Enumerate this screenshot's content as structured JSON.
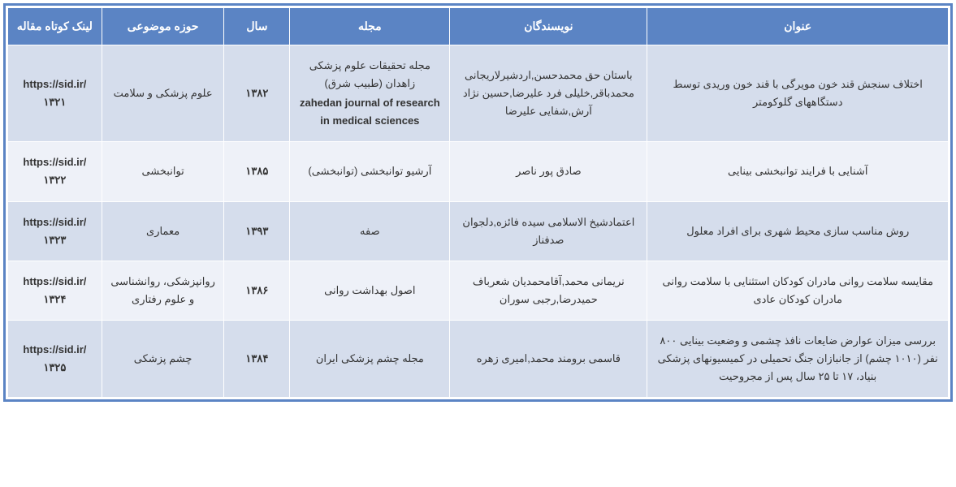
{
  "colors": {
    "header_bg": "#5b84c4",
    "header_text": "#ffffff",
    "row_odd_bg": "#d5ddec",
    "row_even_bg": "#eef1f8",
    "border": "#5b84c4",
    "cell_border": "#ffffff",
    "text": "#333333"
  },
  "typography": {
    "header_fontsize": 14,
    "cell_fontsize": 13,
    "font_family": "Tahoma"
  },
  "columns": [
    {
      "key": "title",
      "label": "عنوان",
      "width_pct": 32
    },
    {
      "key": "authors",
      "label": "نویسندگان",
      "width_pct": 21
    },
    {
      "key": "journal",
      "label": "مجله",
      "width_pct": 17
    },
    {
      "key": "year",
      "label": "سال",
      "width_pct": 7
    },
    {
      "key": "domain",
      "label": "حوزه موضوعی",
      "width_pct": 13
    },
    {
      "key": "link",
      "label": "لینک کوتاه مقاله",
      "width_pct": 13
    }
  ],
  "rows": [
    {
      "title": "اختلاف سنجش قند خون مویرگی با قند خون وریدی توسط دستگاههای گلوکومتر",
      "authors": "باستان حق محمدحسن,اردشیرلاریجانی محمدباقر,خلیلی فرد علیرضا,حسین نژاد آرش,شفایی علیرضا",
      "journal_fa": "مجله تحقیقات علوم پزشکی زاهدان (طبیب شرق)",
      "journal_en": "zahedan journal of research in medical sciences",
      "year": "۱۳۸۲",
      "domain": "علوم پزشکی و سلامت",
      "link": "https://sid.ir/۱۳۲۱"
    },
    {
      "title": "آشنایی با فرایند توانبخشی بینایی",
      "authors": "صادق پور ناصر",
      "journal_fa": "آرشیو توانبخشی (توانبخشی)",
      "journal_en": "",
      "year": "۱۳۸۵",
      "domain": "توانبخشی",
      "link": "https://sid.ir/۱۳۲۲"
    },
    {
      "title": "روش مناسب سازی محیط شهری برای افراد معلول",
      "authors": "اعتمادشیخ الاسلامی سیده فائزه,دلجوان صدفناز",
      "journal_fa": "صفه",
      "journal_en": "",
      "year": "۱۳۹۳",
      "domain": "معماری",
      "link": "https://sid.ir/۱۳۲۳"
    },
    {
      "title": "مقایسه سلامت روانی مادران کودکان استثنایی با سلامت روانی مادران کودکان عادی",
      "authors": "نریمانی محمد,آقامحمدیان شعرباف حمیدرضا,رجبی سوران",
      "journal_fa": "اصول بهداشت روانی",
      "journal_en": "",
      "year": "۱۳۸۶",
      "domain": "روانپزشکی، روانشناسی و علوم رفتاری",
      "link": "https://sid.ir/۱۳۲۴"
    },
    {
      "title": "بررسی میزان عوارض ضایعات نافذ چشمی و وضعیت بینایی ۸۰۰ نفر (۱۰۱۰ چشم) از جانبازان جنگ تحمیلی در کمیسیونهای پزشکی بنیاد، ۱۷ تا ۲۵ سال پس از مجروحیت",
      "authors": "قاسمی برومند محمد,امیری زهره",
      "journal_fa": "مجله چشم پزشکی ایران",
      "journal_en": "",
      "year": "۱۳۸۴",
      "domain": "چشم پزشکی",
      "link": "https://sid.ir/۱۳۲۵"
    }
  ]
}
